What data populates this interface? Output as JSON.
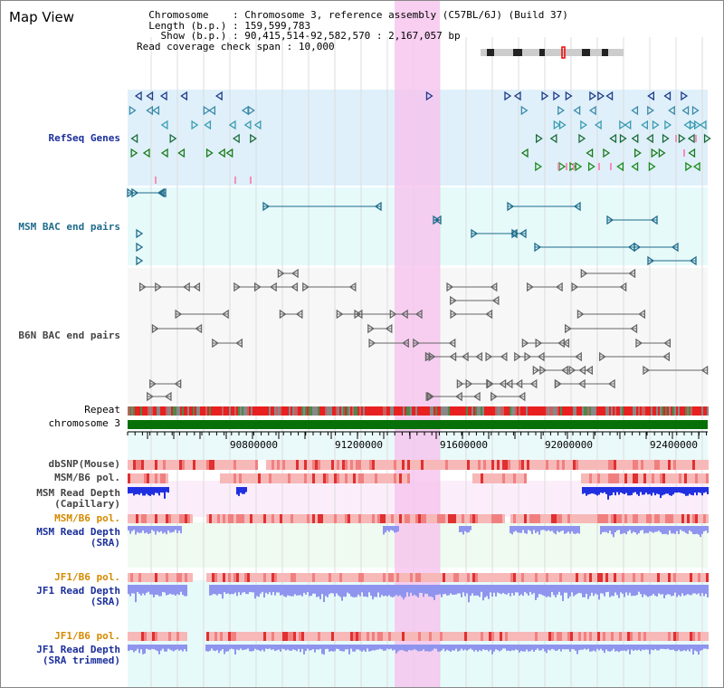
{
  "header": {
    "title": "Map View",
    "chromosome_key": "Chromosome",
    "chromosome_value": "Chromosome 3, reference assembly (C57BL/6J) (Build 37)",
    "length_key": "Length (b.p.)",
    "length_value": "159,599,783",
    "show_key": "Show (b.p.)",
    "show_value": "90,415,514-92,582,570 : 2,167,057 bp",
    "coverage_key": "Read coverage check span",
    "coverage_value": "10,000"
  },
  "tracks": {
    "refseq": "RefSeq Genes",
    "msm_bac": "MSM BAC end pairs",
    "b6n_bac": "B6N BAC end pairs",
    "repeat": "Repeat",
    "chromosome": "chromosome 3",
    "dbsnp": "dbSNP(Mouse)",
    "msm_pol_1": "MSM/B6 pol.",
    "msm_read_cap_1": "MSM Read Depth",
    "msm_read_cap_2": "(Capillary)",
    "msm_pol_2": "MSM/B6 pol.",
    "msm_read_sra_1": "MSM Read Depth",
    "msm_read_sra_2": "(SRA)",
    "jf1_pol_1": "JF1/B6 pol.",
    "jf1_read_sra_1": "JF1 Read Depth",
    "jf1_read_sra_2": "(SRA)",
    "jf1_pol_2": "JF1/B6 pol.",
    "jf1_read_trim_1": "JF1 Read Depth",
    "jf1_read_trim_2": "(SRA trimmed)"
  },
  "axis": {
    "ticks": [
      "90800000",
      "91200000",
      "91600000",
      "92000000",
      "92400000"
    ]
  },
  "colors": {
    "refseq_band": "#dff0fa",
    "bac_band": "#e6fafa",
    "highlight": "#f6c3ee",
    "chromosome_bar": "#087008",
    "repeat_red": "#e82020",
    "snp_pink": "#f7b8b8",
    "depth_blue": "#2030e0",
    "depth_light": "#8f95ee"
  }
}
